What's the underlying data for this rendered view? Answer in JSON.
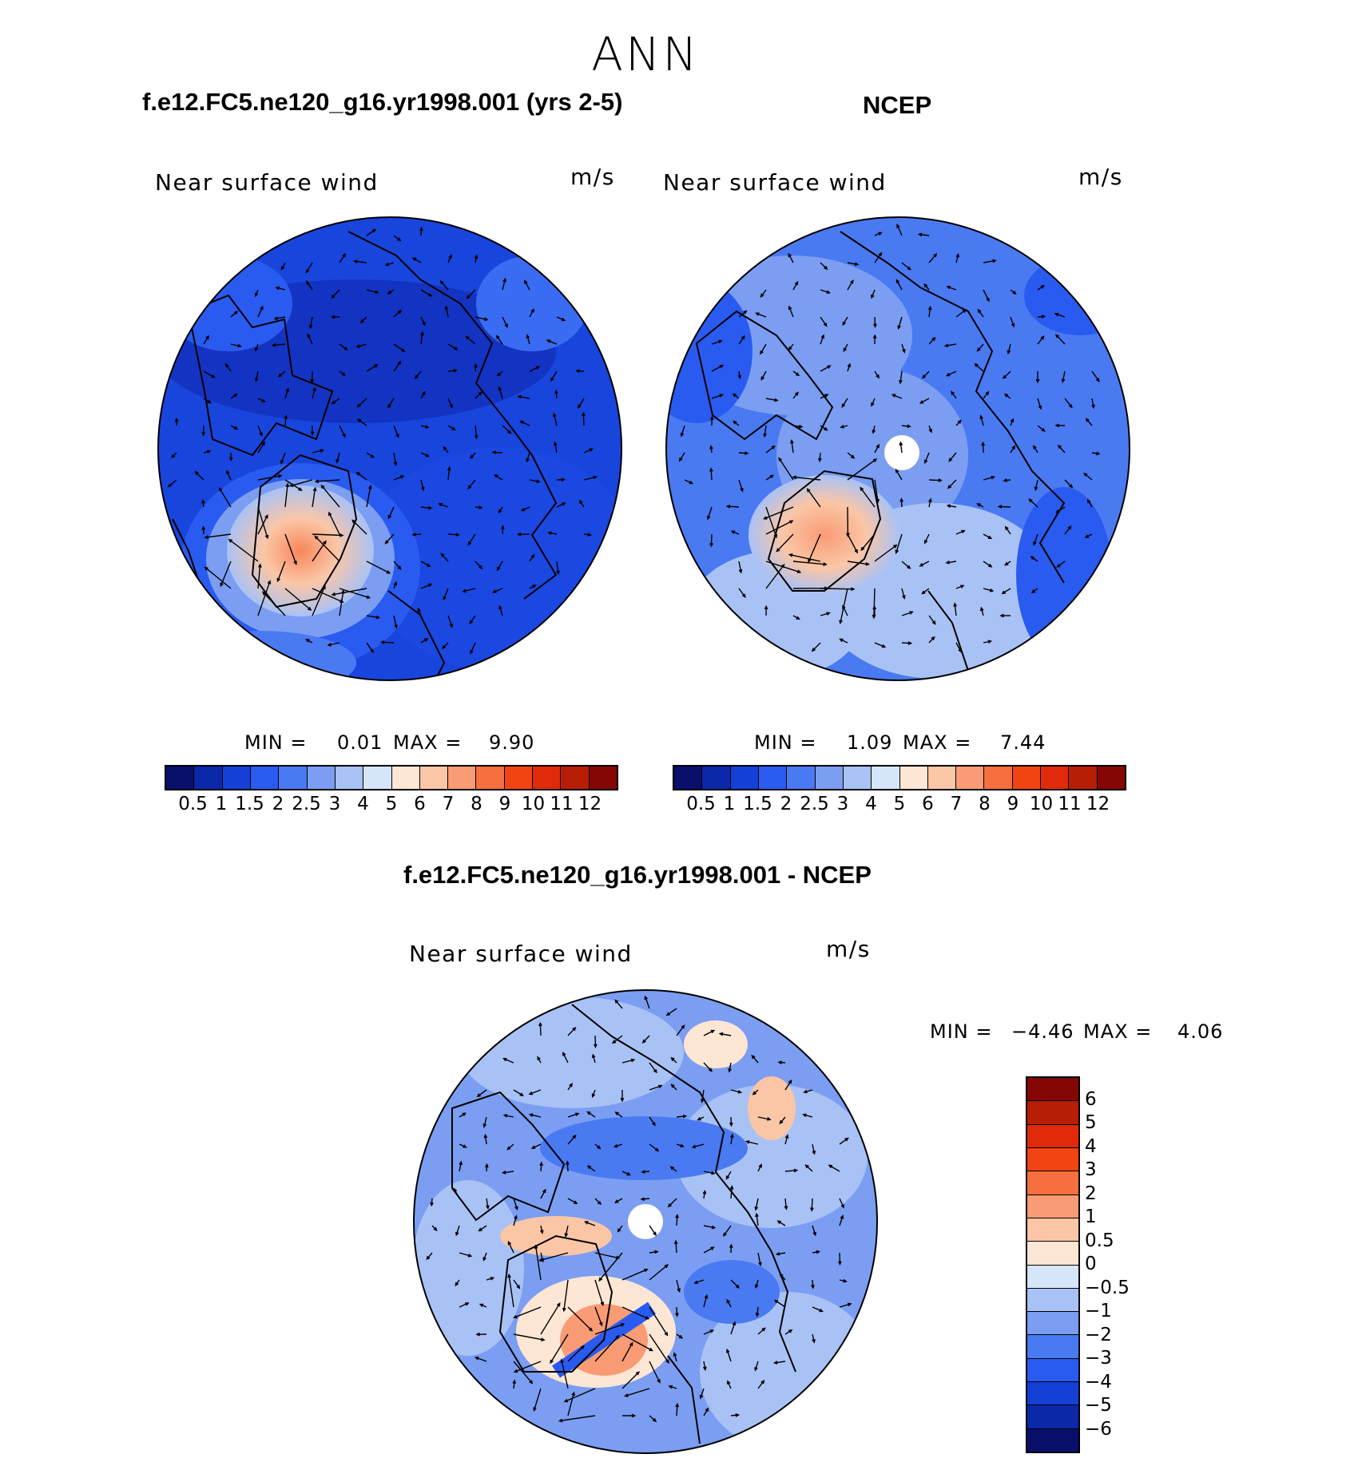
{
  "main_title": "ANN",
  "palette_abs": [
    "#08106b",
    "#0a28a8",
    "#1440d6",
    "#2a5bf0",
    "#4a7af2",
    "#7b9ef2",
    "#a9c2f5",
    "#d5e6fa",
    "#fde6d4",
    "#fbc6a6",
    "#f99b74",
    "#f6703f",
    "#f24413",
    "#e02a0a",
    "#b81d06",
    "#850704"
  ],
  "palette_diff": [
    "#850704",
    "#b81d06",
    "#e02a0a",
    "#f24413",
    "#f6703f",
    "#f99b74",
    "#fbc6a6",
    "#fde6d4",
    "#d5e6fa",
    "#a9c2f5",
    "#7b9ef2",
    "#4a7af2",
    "#2a5bf0",
    "#1440d6",
    "#0a28a8",
    "#08106b"
  ],
  "panels": {
    "model": {
      "title": "f.e12.FC5.ne120_g16.yr1998.001 (yrs 2-5)",
      "var_label": "Near surface wind",
      "units": "m/s",
      "min_label": "MIN =",
      "min": "0.01",
      "max_label": "MAX =",
      "max": "9.90"
    },
    "obs": {
      "title": "NCEP",
      "var_label": "Near surface wind",
      "units": "m/s",
      "min_label": "MIN =",
      "min": "1.09",
      "max_label": "MAX =",
      "max": "7.44"
    },
    "diff": {
      "title": "f.e12.FC5.ne120_g16.yr1998.001 - NCEP",
      "var_label": "Near surface wind",
      "units": "m/s",
      "min_label": "MIN =",
      "min": "−4.46",
      "max_label": "MAX =",
      "max": "4.06"
    }
  },
  "abs_ticks": [
    "0.5",
    "1",
    "1.5",
    "2",
    "2.5",
    "3",
    "4",
    "5",
    "6",
    "7",
    "8",
    "9",
    "10",
    "11",
    "12"
  ],
  "diff_ticks": [
    "6",
    "5",
    "4",
    "3",
    "2",
    "1",
    "0.5",
    "0",
    "−0.5",
    "−1",
    "−2",
    "−3",
    "−4",
    "−5",
    "−6"
  ]
}
